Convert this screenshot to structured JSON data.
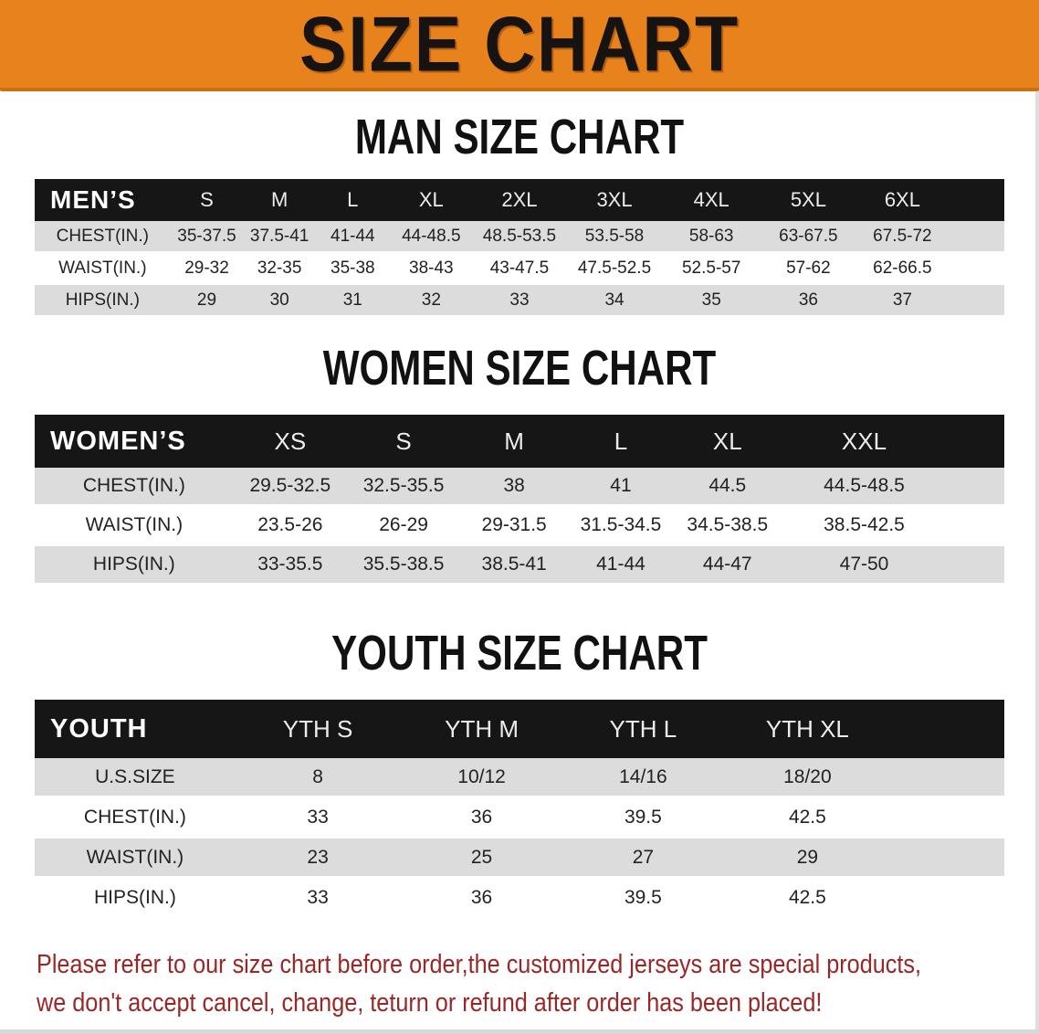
{
  "banner": {
    "title": "SIZE CHART"
  },
  "men": {
    "title": "MAN SIZE CHART",
    "header": [
      "MEN’S",
      "S",
      "M",
      "L",
      "XL",
      "2XL",
      "3XL",
      "4XL",
      "5XL",
      "6XL"
    ],
    "rows": [
      [
        "CHEST(IN.)",
        "35-37.5",
        "37.5-41",
        "41-44",
        "44-48.5",
        "48.5-53.5",
        "53.5-58",
        "58-63",
        "63-67.5",
        "67.5-72"
      ],
      [
        "WAIST(IN.)",
        "29-32",
        "32-35",
        "35-38",
        "38-43",
        "43-47.5",
        "47.5-52.5",
        "52.5-57",
        "57-62",
        "62-66.5"
      ],
      [
        "HIPS(IN.)",
        "29",
        "30",
        "31",
        "32",
        "33",
        "34",
        "35",
        "36",
        "37"
      ]
    ]
  },
  "women": {
    "title": "WOMEN SIZE CHART",
    "header": [
      "WOMEN’S",
      "XS",
      "S",
      "M",
      "L",
      "XL",
      "XXL"
    ],
    "rows": [
      [
        "CHEST(IN.)",
        "29.5-32.5",
        "32.5-35.5",
        "38",
        "41",
        "44.5",
        "44.5-48.5"
      ],
      [
        "WAIST(IN.)",
        "23.5-26",
        "26-29",
        "29-31.5",
        "31.5-34.5",
        "34.5-38.5",
        "38.5-42.5"
      ],
      [
        "HIPS(IN.)",
        "33-35.5",
        "35.5-38.5",
        "38.5-41",
        "41-44",
        "44-47",
        "47-50"
      ]
    ]
  },
  "youth": {
    "title": "YOUTH SIZE CHART",
    "header": [
      "YOUTH",
      "YTH S",
      "YTH M",
      "YTH L",
      "YTH XL"
    ],
    "rows": [
      [
        "U.S.SIZE",
        "8",
        "10/12",
        "14/16",
        "18/20"
      ],
      [
        "CHEST(IN.)",
        "33",
        "36",
        "39.5",
        "42.5"
      ],
      [
        "WAIST(IN.)",
        "23",
        "25",
        "27",
        "29"
      ],
      [
        "HIPS(IN.)",
        "33",
        "36",
        "39.5",
        "42.5"
      ]
    ]
  },
  "disclaimer": {
    "line1": "Please refer to our size chart before order,the customized jerseys are special products,",
    "line2": "we don't accept cancel, change, teturn or refund after order has been placed!"
  },
  "colors": {
    "banner_orange": "#e8821c",
    "banner_edge": "#c9700f",
    "header_black": "#161616",
    "stripe_gray": "#dcdcdc",
    "disclaimer_red": "#9a2626"
  }
}
